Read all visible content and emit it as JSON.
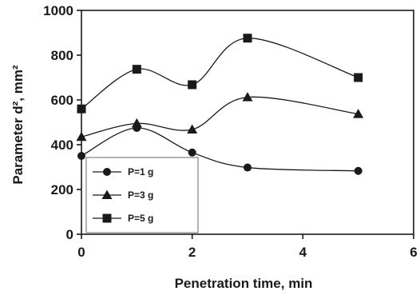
{
  "chart_data": {
    "type": "line",
    "title": "",
    "xlabel": "Penetration time, min",
    "ylabel": "Parameter d², mm²",
    "xlim": [
      0,
      6
    ],
    "ylim": [
      0,
      1000
    ],
    "xticks": [
      0,
      2,
      4,
      6
    ],
    "yticks": [
      0,
      200,
      400,
      600,
      800,
      1000
    ],
    "grid": false,
    "legend_position": "bottom-left",
    "series": [
      {
        "name": "P=1 g",
        "marker": "circle",
        "x": [
          0,
          1,
          2,
          3,
          5
        ],
        "y": [
          350,
          475,
          365,
          298,
          283
        ]
      },
      {
        "name": "P=3 g",
        "marker": "triangle",
        "x": [
          0,
          1,
          2,
          3,
          5
        ],
        "y": [
          435,
          495,
          468,
          612,
          537
        ]
      },
      {
        "name": "P=5 g",
        "marker": "square",
        "x": [
          0,
          1,
          2,
          3,
          5
        ],
        "y": [
          560,
          737,
          668,
          876,
          700
        ]
      }
    ]
  }
}
